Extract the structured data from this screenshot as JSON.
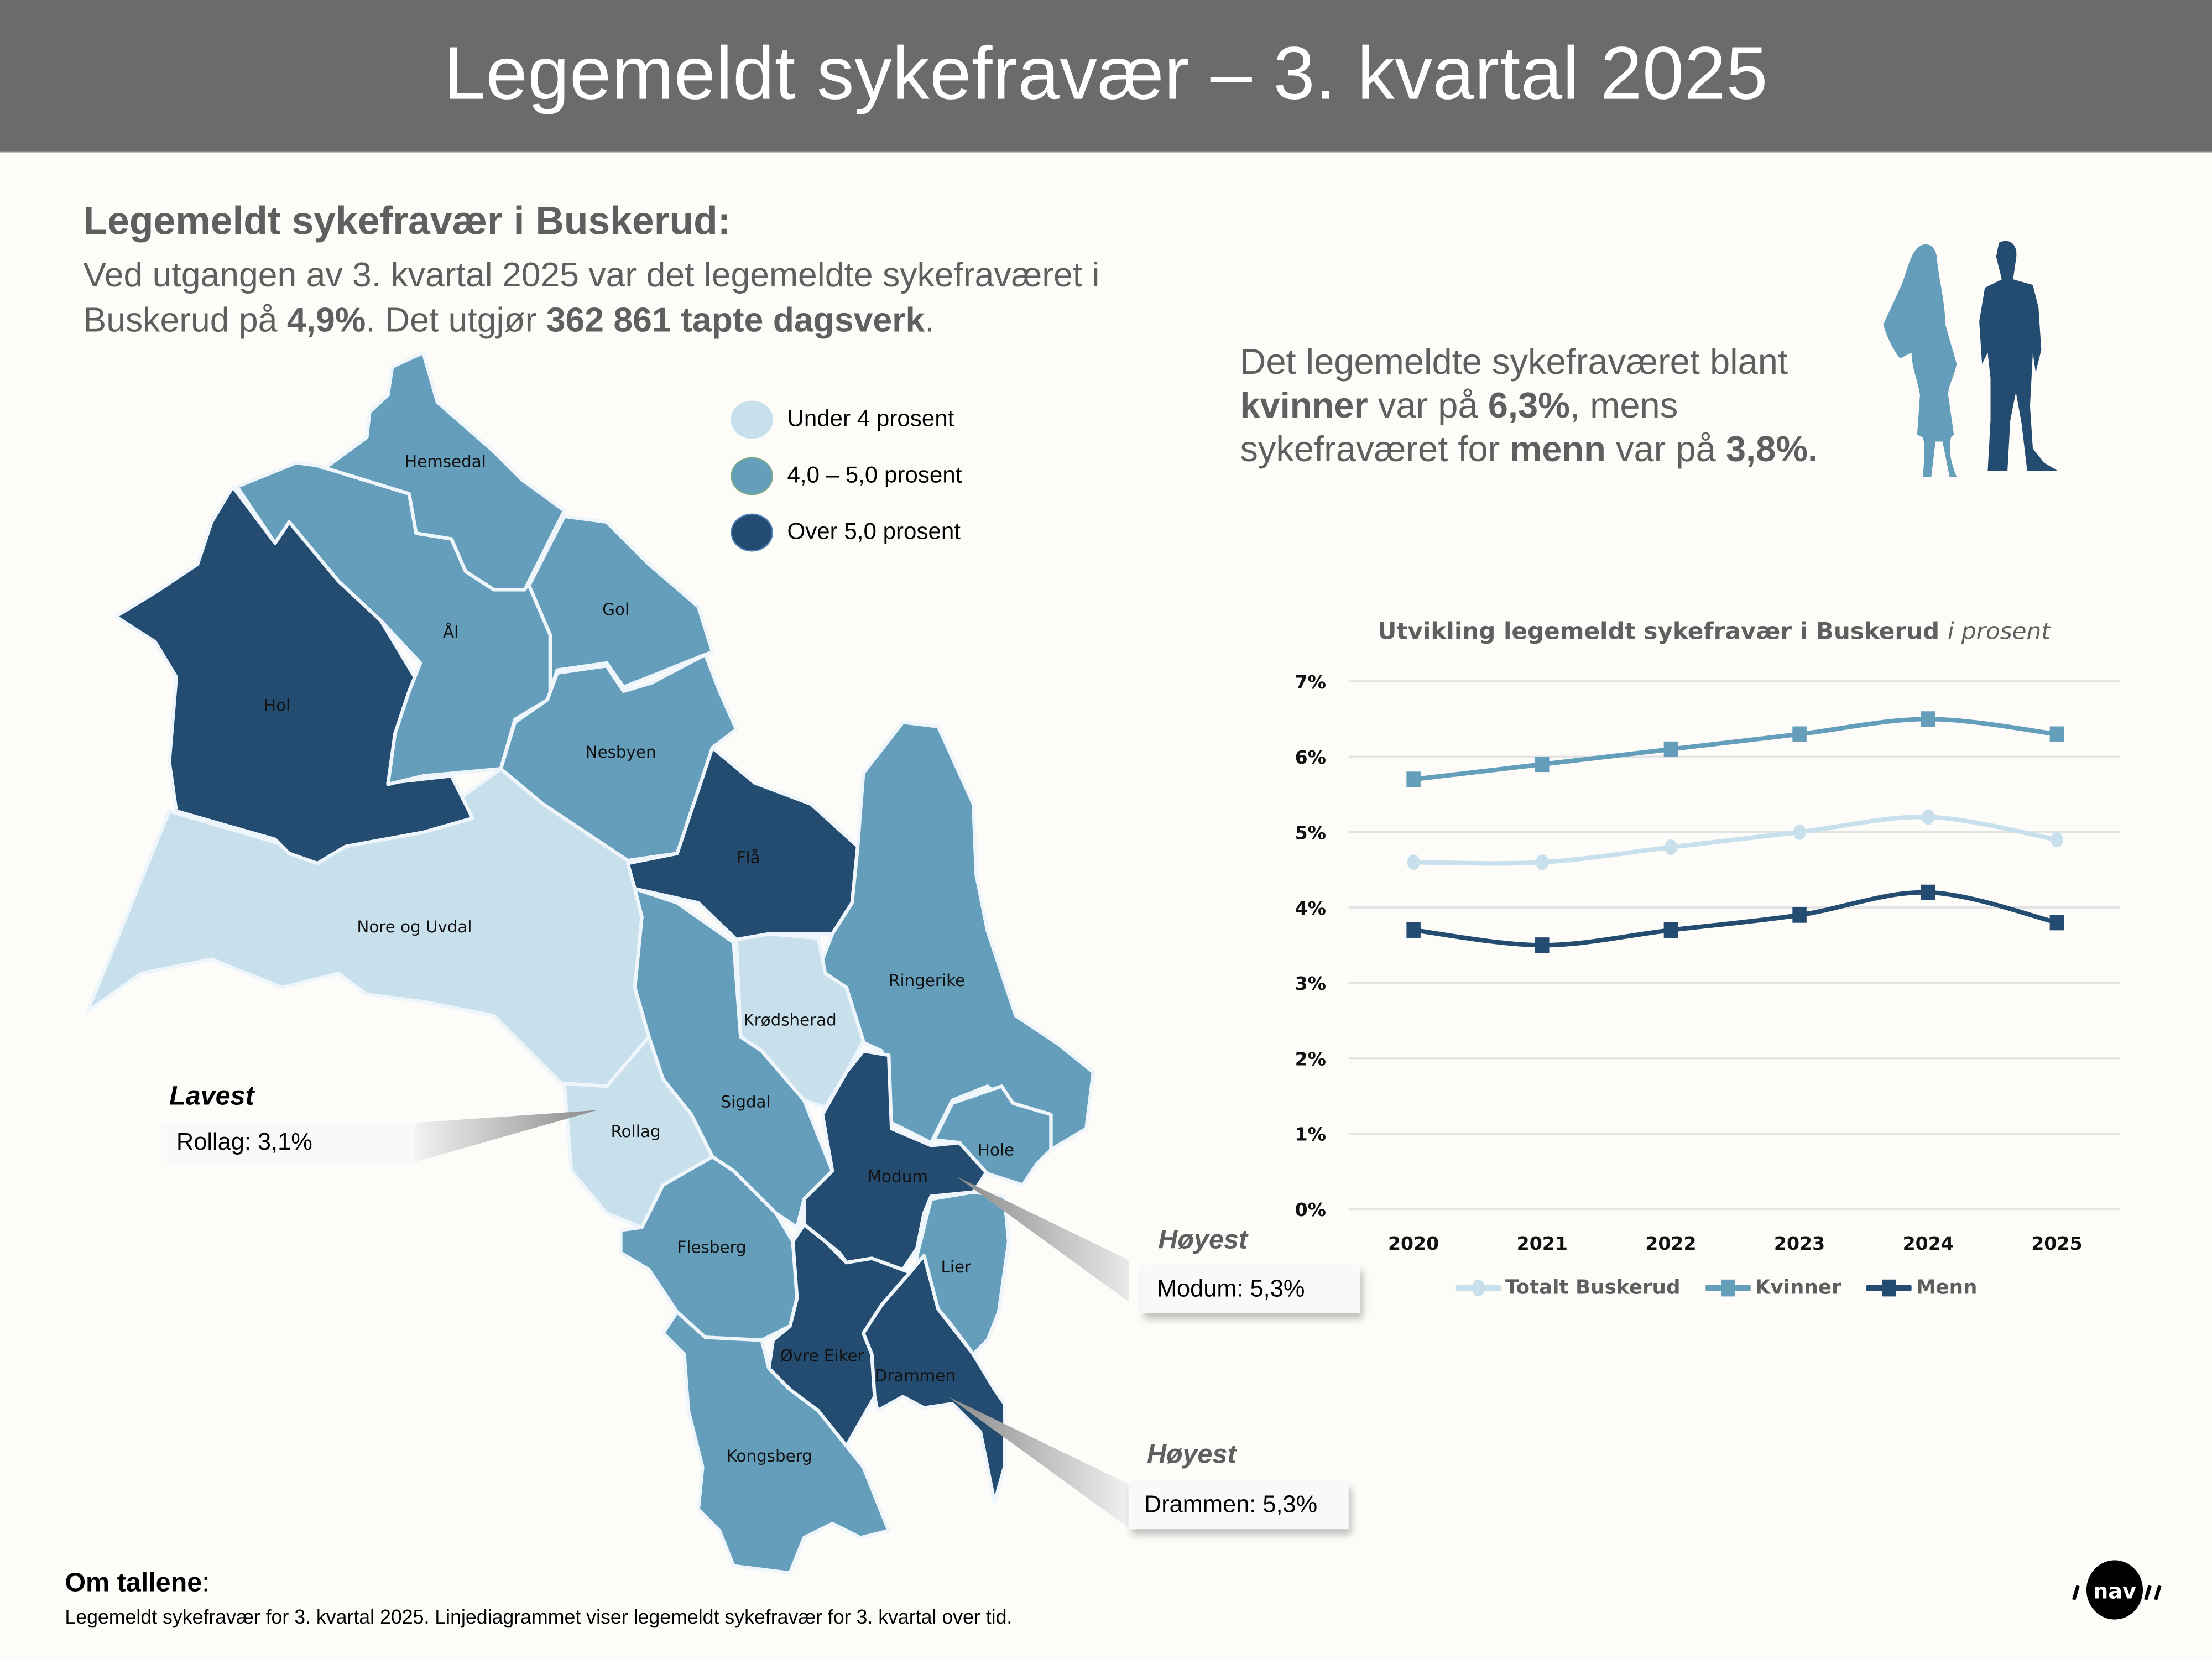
{
  "header": {
    "title": "Legemeldt sykefravær – 3. kvartal 2025"
  },
  "intro": {
    "title": "Legemeldt sykefravær i Buskerud:",
    "line1": "Ved utgangen av 3. kvartal 2025 var det legemeldte sykefraværet i",
    "line2_a": "Buskerud på ",
    "line2_b": "4,9%",
    "line2_c": ". Det utgjør ",
    "line2_d": "362 861 tapte dagsverk",
    "line2_e": "."
  },
  "gender": {
    "t1": "Det legemeldte sykefraværet blant",
    "t2": "kvinner",
    "t3": " var på ",
    "t4": "6,3%",
    "t5": ", mens",
    "t6": "sykefraværet for ",
    "t7": "menn",
    "t8": " var på ",
    "t9": "3,8%.",
    "woman_color": "#659ebb",
    "man_color": "#244b70"
  },
  "map_legend": {
    "items": [
      {
        "label": "Under 4 prosent",
        "color": "#c8dfec"
      },
      {
        "label": "4,0 – 5,0 prosent",
        "color": "#659ebb"
      },
      {
        "label": "Over 5,0 prosent",
        "color": "#244b70"
      }
    ]
  },
  "municipalities": {
    "hemsedal": "Hemsedal",
    "al": "Ål",
    "gol": "Gol",
    "hol": "Hol",
    "nesbyen": "Nesbyen",
    "fla": "Flå",
    "nore_og_uvdal": "Nore og Uvdal",
    "ringerike": "Ringerike",
    "krodsherad": "Krødsherad",
    "rollag": "Rollag",
    "sigdal": "Sigdal",
    "modum": "Modum",
    "hole": "Hole",
    "flesberg": "Flesberg",
    "lier": "Lier",
    "ovre_eiker": "Øvre Eiker",
    "drammen": "Drammen",
    "kongsberg": "Kongsberg"
  },
  "callouts": {
    "lowest": {
      "title": "Lavest",
      "text": "Rollag: 3,1%"
    },
    "highest1": {
      "title": "Høyest",
      "text": "Modum: 5,3%"
    },
    "highest2": {
      "title": "Høyest",
      "text": "Drammen: 5,3%"
    }
  },
  "chart_title": {
    "main": "Utvikling legemeldt sykefravær i Buskerud ",
    "italic": "i prosent"
  },
  "chart_data": {
    "type": "line",
    "title": "Utvikling legemeldt sykefravær i Buskerud i prosent",
    "xlabel": "",
    "ylabel": "",
    "x": [
      "2020",
      "2021",
      "2022",
      "2023",
      "2024",
      "2025"
    ],
    "yticks": [
      "0%",
      "1%",
      "2%",
      "3%",
      "4%",
      "5%",
      "6%",
      "7%"
    ],
    "ylim": [
      0,
      7
    ],
    "grid": true,
    "legend_position": "bottom",
    "series": [
      {
        "name": "Totalt Buskerud",
        "color": "#c8dfec",
        "marker": "circle",
        "values": [
          4.6,
          4.6,
          4.8,
          5.0,
          5.2,
          4.9
        ]
      },
      {
        "name": "Kvinner",
        "color": "#659ebb",
        "marker": "square",
        "values": [
          5.7,
          5.9,
          6.1,
          6.3,
          6.5,
          6.3
        ]
      },
      {
        "name": "Menn",
        "color": "#244b70",
        "marker": "square",
        "values": [
          3.7,
          3.5,
          3.7,
          3.9,
          4.2,
          3.8
        ]
      }
    ]
  },
  "footer": {
    "title": "Om tallene",
    "colon": ":",
    "text": "Legemeldt sykefravær for 3. kvartal 2025. Linjediagrammet viser legemeldt sykefravær for 3. kvartal over tid."
  },
  "logo": {
    "text": "nav"
  }
}
